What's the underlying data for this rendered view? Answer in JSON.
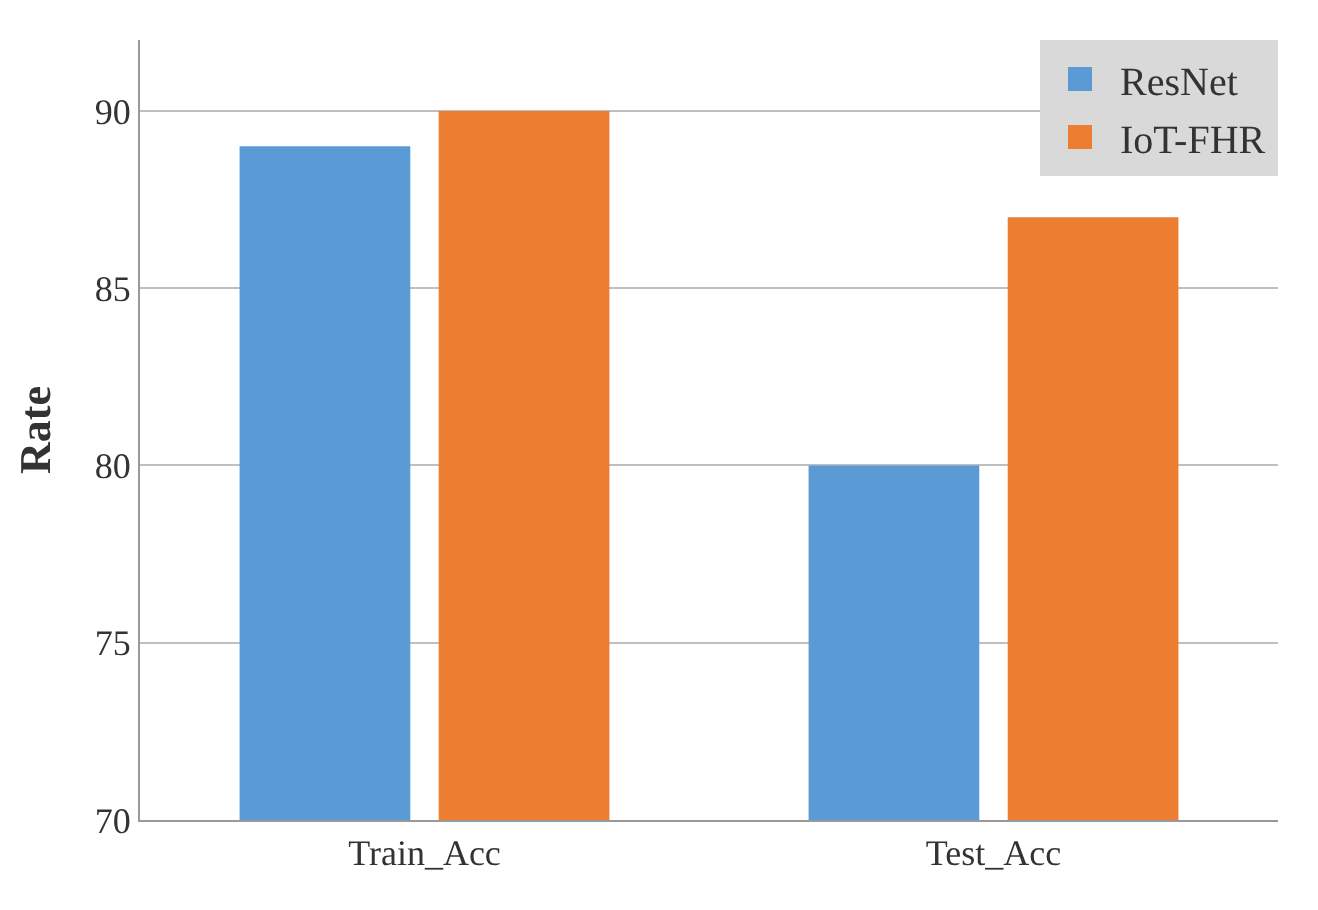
{
  "chart_data": {
    "type": "bar",
    "ylabel": "Rate",
    "categories": [
      "Train_Acc",
      "Test_Acc"
    ],
    "series": [
      {
        "name": "ResNet",
        "color": "#5b9bd5",
        "values": [
          89,
          80
        ]
      },
      {
        "name": "IoT-FHR",
        "color": "#ed7d31",
        "values": [
          90,
          87
        ]
      }
    ],
    "ylim": [
      70,
      92
    ],
    "yticks": [
      70,
      75,
      80,
      85,
      90
    ],
    "grid": "y",
    "legend": "top right"
  }
}
